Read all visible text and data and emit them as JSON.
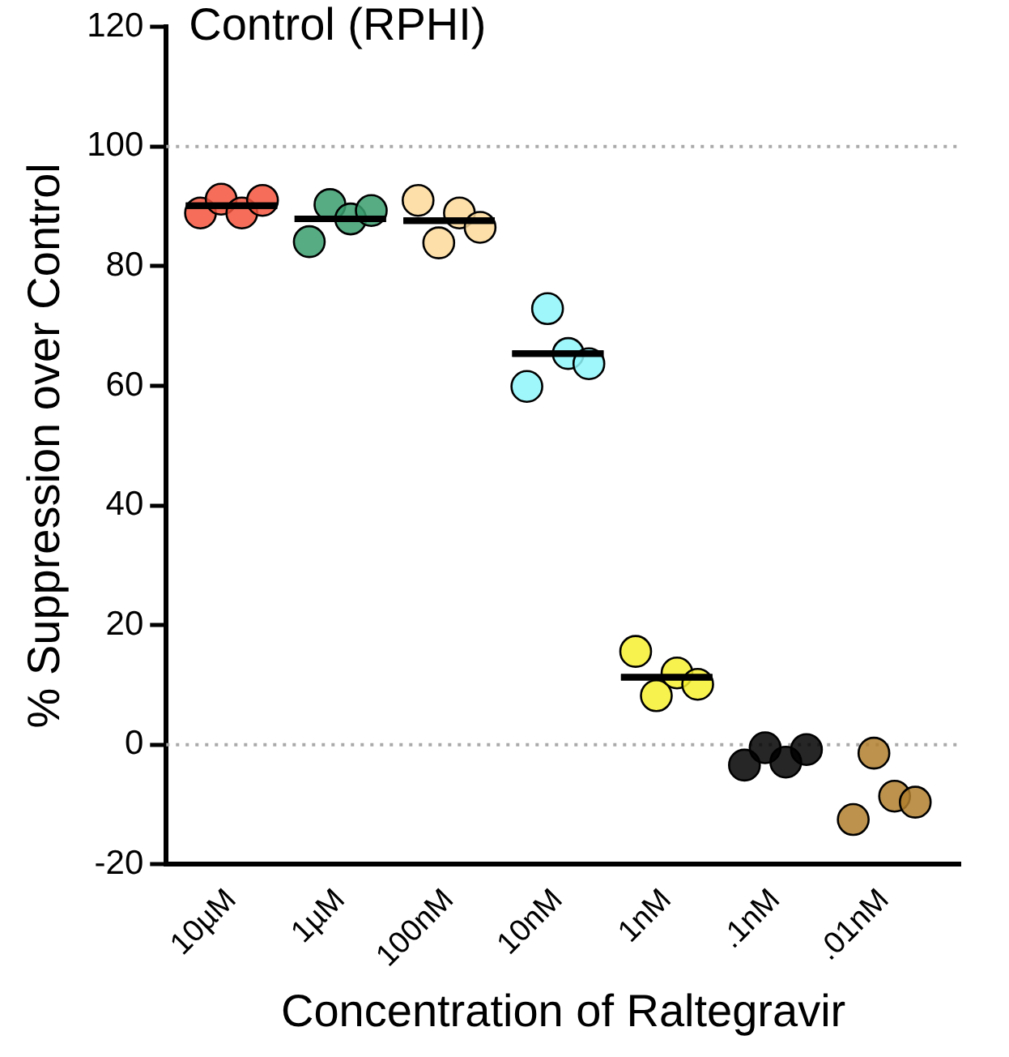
{
  "chart_data": {
    "type": "scatter",
    "title": "Control (RPHI)",
    "xlabel": "Concentration of Raltegravir",
    "ylabel": "% Suppression over Control",
    "categories": [
      "10µM",
      "1µM",
      "100nM",
      "10nM",
      "1nM",
      ".1nM",
      ".01nM"
    ],
    "ylim": [
      -20,
      120
    ],
    "yticks": [
      -20,
      0,
      20,
      40,
      60,
      80,
      100,
      120
    ],
    "grid": false,
    "legend": false,
    "marker": "circle",
    "ref_lines": [
      {
        "axis": "y",
        "value": 100,
        "color": "#aaaaaa",
        "line_style": "dotted"
      },
      {
        "axis": "y",
        "value": 0,
        "color": "#aaaaaa",
        "line_style": "dotted"
      }
    ],
    "series": [
      {
        "color": "#f4553d",
        "x": [
          "10µM",
          "10µM",
          "10µM",
          "10µM"
        ],
        "values": [
          88.9,
          91.2,
          88.9,
          91.0
        ]
      },
      {
        "color": "#3a9e6e",
        "x": [
          "1µM",
          "1µM",
          "1µM",
          "1µM"
        ],
        "values": [
          84.1,
          90.3,
          87.9,
          89.3
        ]
      },
      {
        "color": "#fbd99a",
        "x": [
          "100nM",
          "100nM",
          "100nM",
          "100nM"
        ],
        "values": [
          91.0,
          83.9,
          88.9,
          86.5
        ]
      },
      {
        "color": "#8ef6fa",
        "x": [
          "10nM",
          "10nM",
          "10nM",
          "10nM"
        ],
        "values": [
          59.9,
          72.9,
          65.4,
          63.7
        ]
      },
      {
        "color": "#f7f02f",
        "x": [
          "1nM",
          "1nM",
          "1nM",
          "1nM"
        ],
        "values": [
          15.6,
          8.2,
          12.0,
          10.1
        ]
      },
      {
        "color": "#000000",
        "x": [
          ".1nM",
          ".1nM",
          ".1nM",
          ".1nM"
        ],
        "values": [
          -3.4,
          -0.5,
          -2.9,
          -0.8
        ]
      },
      {
        "color": "#b07f2e",
        "x": [
          ".01nM",
          ".01nM",
          ".01nM",
          ".01nM"
        ],
        "values": [
          -12.5,
          -1.4,
          -8.6,
          -9.6
        ]
      },
      {
        "type": "box",
        "color": "#000000",
        "boxes": [
          {
            "low": 90.1,
            "q1": 90.1,
            "median": 90.1,
            "q3": 90.1,
            "high": 90.1
          },
          {
            "low": 87.9,
            "q1": 87.9,
            "median": 87.9,
            "q3": 87.9,
            "high": 87.9
          },
          {
            "low": 87.6,
            "q1": 87.6,
            "median": 87.6,
            "q3": 87.6,
            "high": 87.6
          },
          {
            "low": 65.4,
            "q1": 65.4,
            "median": 65.4,
            "q3": 65.4,
            "high": 65.4
          },
          {
            "low": 11.3,
            "q1": 11.3,
            "median": 11.3,
            "q3": 11.3,
            "high": 11.3
          },
          null,
          null
        ]
      }
    ]
  }
}
